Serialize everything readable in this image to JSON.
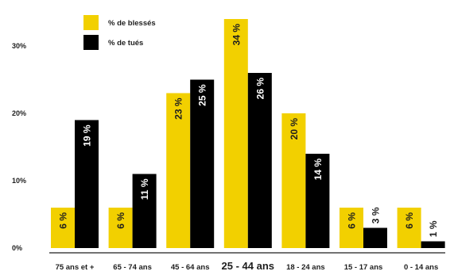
{
  "chart_data": {
    "type": "bar",
    "categories": [
      "75 ans et +",
      "65 - 74 ans",
      "45 - 64 ans",
      "25 - 44 ans",
      "18 - 24 ans",
      "15 - 17 ans",
      "0 - 14 ans"
    ],
    "emphasized_category": "25 - 44 ans",
    "series": [
      {
        "name": "% de blessés",
        "values": [
          6,
          6,
          23,
          34,
          20,
          6,
          6
        ],
        "labels": [
          "6 %",
          "6 %",
          "23 %",
          "34 %",
          "20 %",
          "6 %",
          "6 %"
        ],
        "color": "#f2d000",
        "label_color": "#1e1e1e"
      },
      {
        "name": "% de tués",
        "values": [
          19,
          11,
          25,
          26,
          14,
          3,
          1
        ],
        "labels": [
          "19 %",
          "11 %",
          "25 %",
          "26 %",
          "14 %",
          "3 %",
          "1 %"
        ],
        "color": "#000000",
        "label_color": "#ffffff"
      }
    ],
    "yticks": [
      0,
      10,
      20,
      30
    ],
    "ytick_labels": [
      "0%",
      "10%",
      "20%",
      "30%"
    ],
    "ylim": [
      0,
      36
    ],
    "title": "",
    "xlabel": "",
    "ylabel": "",
    "grid": false,
    "legend": "top-left"
  }
}
